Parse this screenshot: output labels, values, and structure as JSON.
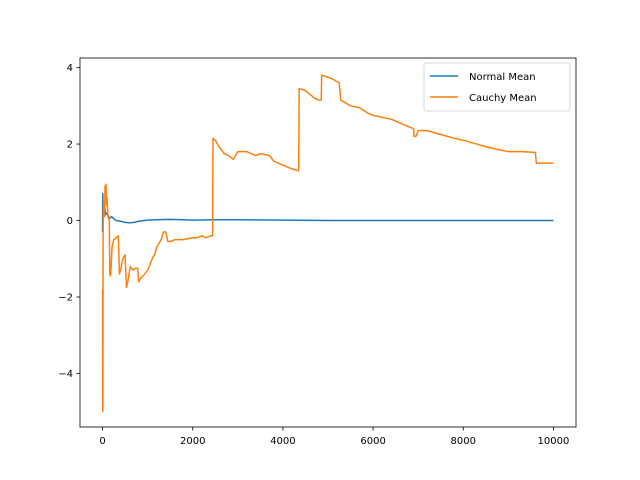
{
  "chart_data": {
    "type": "line",
    "title": "",
    "xlabel": "",
    "ylabel": "",
    "xlim": [
      -500,
      10500
    ],
    "ylim": [
      -5.4,
      4.25
    ],
    "grid": false,
    "legend_placement": "top-right",
    "x_ticks": [
      0,
      2000,
      4000,
      6000,
      8000,
      10000
    ],
    "x_tick_labels": [
      "0",
      "2000",
      "4000",
      "6000",
      "8000",
      "10000"
    ],
    "y_ticks": [
      -4,
      -2,
      0,
      2,
      4
    ],
    "y_tick_labels": [
      "−4",
      "−2",
      "0",
      "2",
      "4"
    ],
    "series": [
      {
        "name": "Normal Mean",
        "color": "#1f77b4",
        "points": [
          [
            0,
            -0.3
          ],
          [
            5,
            0.7
          ],
          [
            10,
            0.2
          ],
          [
            20,
            0.45
          ],
          [
            30,
            0.25
          ],
          [
            50,
            0.35
          ],
          [
            70,
            0.15
          ],
          [
            100,
            0.2
          ],
          [
            150,
            0.05
          ],
          [
            200,
            0.1
          ],
          [
            300,
            0.0
          ],
          [
            400,
            -0.02
          ],
          [
            500,
            -0.05
          ],
          [
            600,
            -0.06
          ],
          [
            700,
            -0.05
          ],
          [
            800,
            -0.02
          ],
          [
            1000,
            0.01
          ],
          [
            1200,
            0.02
          ],
          [
            1500,
            0.03
          ],
          [
            1800,
            0.02
          ],
          [
            2000,
            0.01
          ],
          [
            2500,
            0.02
          ],
          [
            3000,
            0.02
          ],
          [
            4000,
            0.01
          ],
          [
            5000,
            0.0
          ],
          [
            6000,
            0.0
          ],
          [
            7000,
            0.0
          ],
          [
            8000,
            0.0
          ],
          [
            9000,
            0.0
          ],
          [
            10000,
            0.0
          ]
        ]
      },
      {
        "name": "Cauchy Mean",
        "color": "#ff7f0e",
        "points": [
          [
            0,
            -1.8
          ],
          [
            3,
            -5.0
          ],
          [
            8,
            -4.9
          ],
          [
            12,
            -0.5
          ],
          [
            18,
            0.2
          ],
          [
            25,
            0.5
          ],
          [
            35,
            0.3
          ],
          [
            45,
            0.1
          ],
          [
            55,
            0.9
          ],
          [
            65,
            0.6
          ],
          [
            75,
            0.95
          ],
          [
            90,
            0.4
          ],
          [
            100,
            0.6
          ],
          [
            110,
            0.3
          ],
          [
            120,
            0.1
          ],
          [
            150,
            0.0
          ],
          [
            160,
            -1.4
          ],
          [
            175,
            -1.45
          ],
          [
            190,
            -1.2
          ],
          [
            210,
            -0.7
          ],
          [
            250,
            -0.5
          ],
          [
            300,
            -0.45
          ],
          [
            350,
            -0.4
          ],
          [
            375,
            -1.4
          ],
          [
            400,
            -1.3
          ],
          [
            450,
            -1.0
          ],
          [
            500,
            -0.9
          ],
          [
            530,
            -1.75
          ],
          [
            560,
            -1.6
          ],
          [
            600,
            -1.3
          ],
          [
            620,
            -1.2
          ],
          [
            640,
            -1.25
          ],
          [
            680,
            -1.3
          ],
          [
            730,
            -1.25
          ],
          [
            780,
            -1.25
          ],
          [
            800,
            -1.6
          ],
          [
            850,
            -1.5
          ],
          [
            900,
            -1.45
          ],
          [
            1000,
            -1.3
          ],
          [
            1100,
            -1.0
          ],
          [
            1150,
            -0.9
          ],
          [
            1200,
            -0.7
          ],
          [
            1250,
            -0.6
          ],
          [
            1300,
            -0.5
          ],
          [
            1350,
            -0.3
          ],
          [
            1400,
            -0.3
          ],
          [
            1450,
            -0.55
          ],
          [
            1500,
            -0.55
          ],
          [
            1600,
            -0.5
          ],
          [
            1700,
            -0.5
          ],
          [
            1800,
            -0.5
          ],
          [
            2000,
            -0.45
          ],
          [
            2100,
            -0.45
          ],
          [
            2200,
            -0.4
          ],
          [
            2300,
            -0.45
          ],
          [
            2400,
            -0.4
          ],
          [
            2440,
            -0.4
          ],
          [
            2450,
            2.15
          ],
          [
            2500,
            2.1
          ],
          [
            2550,
            2.0
          ],
          [
            2600,
            1.9
          ],
          [
            2700,
            1.75
          ],
          [
            2800,
            1.7
          ],
          [
            2900,
            1.6
          ],
          [
            3000,
            1.8
          ],
          [
            3200,
            1.8
          ],
          [
            3400,
            1.7
          ],
          [
            3500,
            1.75
          ],
          [
            3700,
            1.7
          ],
          [
            3800,
            1.55
          ],
          [
            4000,
            1.45
          ],
          [
            4200,
            1.35
          ],
          [
            4350,
            1.3
          ],
          [
            4360,
            3.45
          ],
          [
            4500,
            3.4
          ],
          [
            4600,
            3.3
          ],
          [
            4700,
            3.2
          ],
          [
            4800,
            3.15
          ],
          [
            4850,
            3.15
          ],
          [
            4860,
            3.8
          ],
          [
            5000,
            3.75
          ],
          [
            5100,
            3.7
          ],
          [
            5250,
            3.6
          ],
          [
            5280,
            3.15
          ],
          [
            5500,
            3.0
          ],
          [
            5700,
            2.95
          ],
          [
            5900,
            2.8
          ],
          [
            6000,
            2.75
          ],
          [
            6200,
            2.7
          ],
          [
            6400,
            2.65
          ],
          [
            6600,
            2.55
          ],
          [
            6800,
            2.45
          ],
          [
            6900,
            2.4
          ],
          [
            6910,
            2.2
          ],
          [
            6950,
            2.2
          ],
          [
            7000,
            2.35
          ],
          [
            7200,
            2.35
          ],
          [
            7500,
            2.25
          ],
          [
            7800,
            2.15
          ],
          [
            8000,
            2.1
          ],
          [
            8300,
            2.0
          ],
          [
            8600,
            1.9
          ],
          [
            8800,
            1.85
          ],
          [
            9000,
            1.8
          ],
          [
            9300,
            1.8
          ],
          [
            9600,
            1.78
          ],
          [
            9620,
            1.5
          ],
          [
            10000,
            1.5
          ]
        ]
      }
    ]
  }
}
